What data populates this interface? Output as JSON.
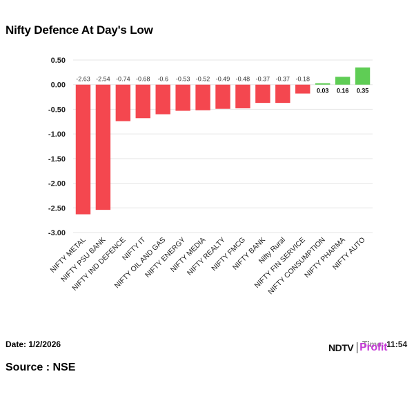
{
  "colors": {
    "negative": "#f4474f",
    "positive": "#5fcd55",
    "grid": "#e6e6e6"
  },
  "footer": {
    "date": "Date: 1/2/2026",
    "source": "Source : NSE",
    "time": "Time: 11:54",
    "logo_main": "NDTV",
    "logo_accent": "Profit"
  },
  "chart_data": {
    "type": "bar",
    "title": "Nifty Defence At Day's Low",
    "xlabel": "",
    "ylabel": "",
    "ylim": [
      -3.0,
      0.5
    ],
    "yticks": [
      0.5,
      0.0,
      -0.5,
      -1.0,
      -1.5,
      -2.0,
      -2.5,
      -3.0
    ],
    "ytick_labels": [
      "0.50",
      "0.00",
      "-0.50",
      "-1.00",
      "-1.50",
      "-2.00",
      "-2.50",
      "-3.00"
    ],
    "grid": true,
    "categories": [
      "NIFTY METAL",
      "NIFTY PSU BANK",
      "NIFTY IND DEFENCE",
      "NIFTY IT",
      "NIFTY OIL AND GAS",
      "NIFTY ENERGY",
      "NIFTY MEDIA",
      "NIFTY REALTY",
      "NIFTY FMCG",
      "NIFTY BANK",
      "Nifty Rural",
      "NIFTY FIN SERVICE",
      "NIFTY CONSUMPTION",
      "NIFTY PHARMA",
      "NIFTY AUTO"
    ],
    "values": [
      -2.63,
      -2.54,
      -0.74,
      -0.68,
      -0.6,
      -0.53,
      -0.52,
      -0.49,
      -0.48,
      -0.37,
      -0.37,
      -0.18,
      0.03,
      0.16,
      0.35
    ],
    "value_labels": [
      "-2.63",
      "-2.54",
      "-0.74",
      "-0.68",
      "-0.6",
      "-0.53",
      "-0.52",
      "-0.49",
      "-0.48",
      "-0.37",
      "-0.37",
      "-0.18",
      "0.03",
      "0.16",
      "0.35"
    ]
  }
}
